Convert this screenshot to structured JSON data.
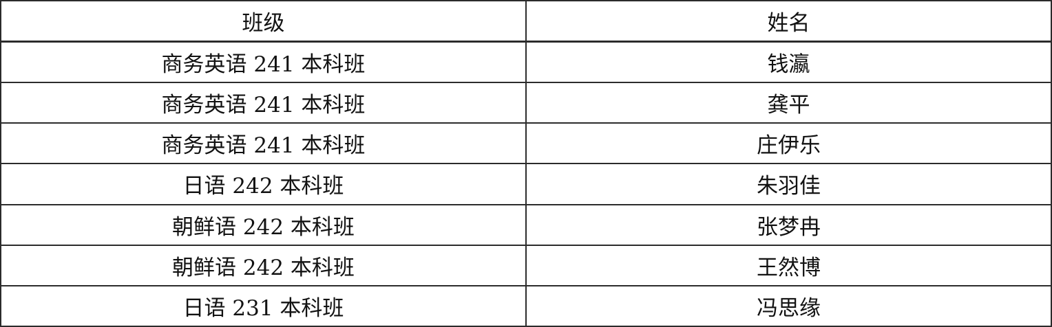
{
  "table": {
    "headers": {
      "class": "班级",
      "name": "姓名"
    },
    "rows": [
      {
        "class": "商务英语 241 本科班",
        "name": "钱瀛"
      },
      {
        "class": "商务英语 241 本科班",
        "name": "龚平"
      },
      {
        "class": "商务英语 241 本科班",
        "name": "庄伊乐"
      },
      {
        "class": "日语 242 本科班",
        "name": "朱羽佳"
      },
      {
        "class": "朝鲜语 242 本科班",
        "name": "张梦冉"
      },
      {
        "class": "朝鲜语 242 本科班",
        "name": "王然博"
      },
      {
        "class": "日语 231 本科班",
        "name": "冯思缘"
      }
    ],
    "colors": {
      "border": "#2b2b2b",
      "text": "#121212",
      "background": "#ffffff"
    }
  }
}
